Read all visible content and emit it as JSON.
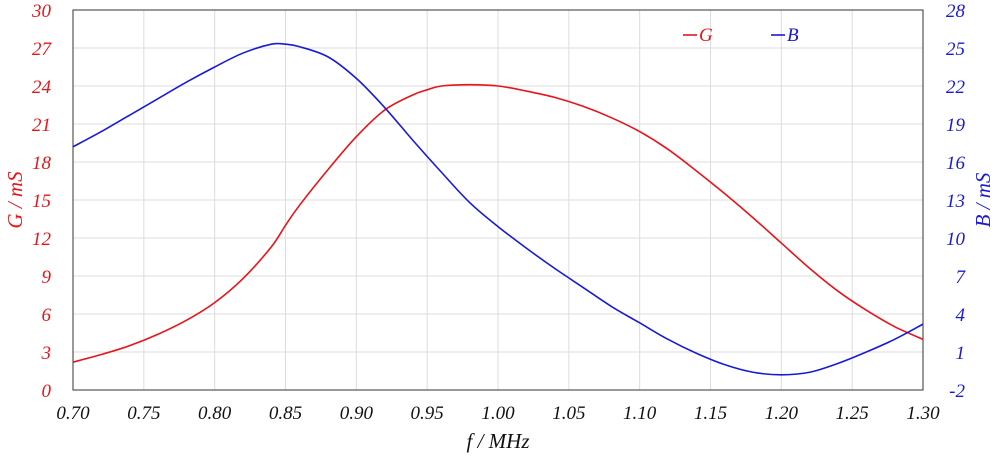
{
  "chart_data": {
    "type": "line",
    "xlabel": "f / MHz",
    "ylabel_left": "G / mS",
    "ylabel_right": "B / mS",
    "xlim": [
      0.7,
      1.3
    ],
    "ylim_left": [
      0,
      30
    ],
    "ylim_right": [
      -2,
      28
    ],
    "x_ticks": [
      "0.70",
      "0.75",
      "0.80",
      "0.85",
      "0.90",
      "0.95",
      "1.00",
      "1.05",
      "1.10",
      "1.15",
      "1.20",
      "1.25",
      "1.30"
    ],
    "y_left_ticks": [
      "0",
      "3",
      "6",
      "9",
      "12",
      "15",
      "18",
      "21",
      "24",
      "27",
      "30"
    ],
    "y_right_ticks": [
      "-2",
      "1",
      "4",
      "7",
      "10",
      "13",
      "16",
      "19",
      "22",
      "25",
      "28"
    ],
    "grid": true,
    "legend_position": "top-right",
    "colors": {
      "G": "#e8141a",
      "B": "#1a1ad6"
    },
    "series": [
      {
        "name": "G",
        "axis": "left",
        "x": [
          0.7,
          0.72,
          0.74,
          0.76,
          0.78,
          0.8,
          0.82,
          0.84,
          0.85,
          0.86,
          0.88,
          0.9,
          0.92,
          0.94,
          0.95,
          0.96,
          0.98,
          1.0,
          1.02,
          1.04,
          1.06,
          1.08,
          1.1,
          1.12,
          1.14,
          1.16,
          1.18,
          1.2,
          1.22,
          1.24,
          1.26,
          1.28,
          1.3
        ],
        "y": [
          2.2,
          2.8,
          3.5,
          4.4,
          5.5,
          6.9,
          8.8,
          11.3,
          13.0,
          14.6,
          17.4,
          20.0,
          22.1,
          23.3,
          23.7,
          24.0,
          24.1,
          24.0,
          23.6,
          23.1,
          22.4,
          21.5,
          20.4,
          19.0,
          17.3,
          15.5,
          13.6,
          11.6,
          9.6,
          7.8,
          6.3,
          5.0,
          4.0
        ]
      },
      {
        "name": "B",
        "axis": "right",
        "x": [
          0.7,
          0.72,
          0.74,
          0.76,
          0.78,
          0.8,
          0.82,
          0.84,
          0.85,
          0.86,
          0.88,
          0.9,
          0.92,
          0.94,
          0.96,
          0.98,
          1.0,
          1.02,
          1.04,
          1.06,
          1.08,
          1.1,
          1.12,
          1.14,
          1.16,
          1.18,
          1.2,
          1.22,
          1.24,
          1.26,
          1.28,
          1.3
        ],
        "y": [
          17.2,
          18.4,
          19.7,
          21.0,
          22.3,
          23.5,
          24.6,
          25.3,
          25.3,
          25.1,
          24.3,
          22.6,
          20.3,
          17.7,
          15.2,
          12.8,
          10.9,
          9.2,
          7.6,
          6.1,
          4.6,
          3.3,
          2.0,
          0.9,
          0.0,
          -0.6,
          -0.8,
          -0.6,
          0.1,
          1.0,
          2.0,
          3.2
        ]
      }
    ]
  }
}
